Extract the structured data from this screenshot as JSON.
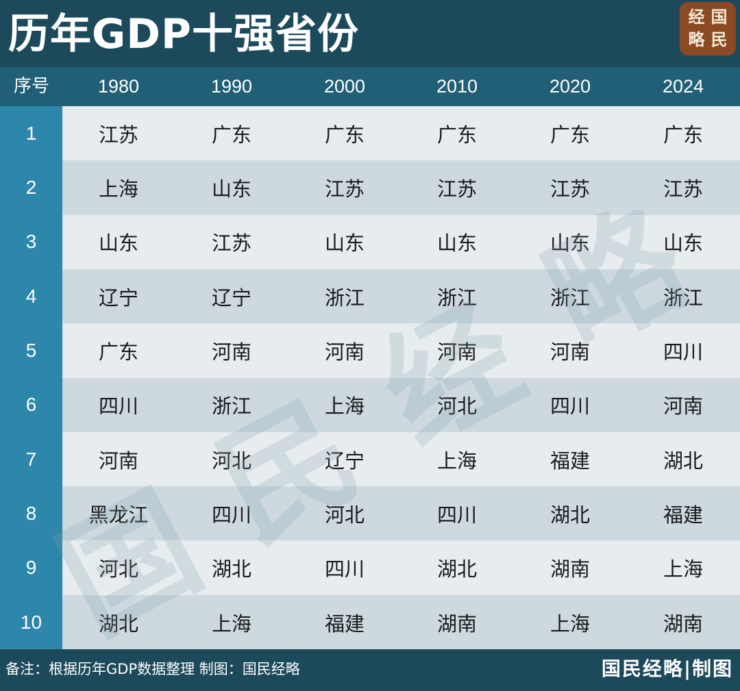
{
  "title": "历年GDP十强省份",
  "logo": {
    "chars": [
      "经",
      "国",
      "略",
      "民"
    ]
  },
  "watermark": {
    "chars": [
      "国",
      "民",
      "经",
      "略"
    ]
  },
  "colors": {
    "header_bg": "#1d4a5b",
    "column_header_bg": "#215f76",
    "rank_column_bg": "#2c87aa",
    "row_light": "#e7ecee",
    "row_dark": "#cdd9df",
    "logo_bg": "#8b4a22"
  },
  "chart_data": {
    "type": "table",
    "columns": [
      "序号",
      "1980",
      "1990",
      "2000",
      "2010",
      "2020",
      "2024"
    ],
    "rows": [
      [
        "1",
        "江苏",
        "广东",
        "广东",
        "广东",
        "广东",
        "广东"
      ],
      [
        "2",
        "上海",
        "山东",
        "江苏",
        "江苏",
        "江苏",
        "江苏"
      ],
      [
        "3",
        "山东",
        "江苏",
        "山东",
        "山东",
        "山东",
        "山东"
      ],
      [
        "4",
        "辽宁",
        "辽宁",
        "浙江",
        "浙江",
        "浙江",
        "浙江"
      ],
      [
        "5",
        "广东",
        "河南",
        "河南",
        "河南",
        "河南",
        "四川"
      ],
      [
        "6",
        "四川",
        "浙江",
        "上海",
        "河北",
        "四川",
        "河南"
      ],
      [
        "7",
        "河南",
        "河北",
        "辽宁",
        "上海",
        "福建",
        "湖北"
      ],
      [
        "8",
        "黑龙江",
        "四川",
        "河北",
        "四川",
        "湖北",
        "福建"
      ],
      [
        "9",
        "河北",
        "湖北",
        "四川",
        "湖北",
        "湖南",
        "上海"
      ],
      [
        "10",
        "湖北",
        "上海",
        "福建",
        "湖南",
        "上海",
        "湖南"
      ]
    ]
  },
  "footer": {
    "note": "备注：根据历年GDP数据整理 制图：国民经略",
    "credit": "国民经略|制图"
  }
}
